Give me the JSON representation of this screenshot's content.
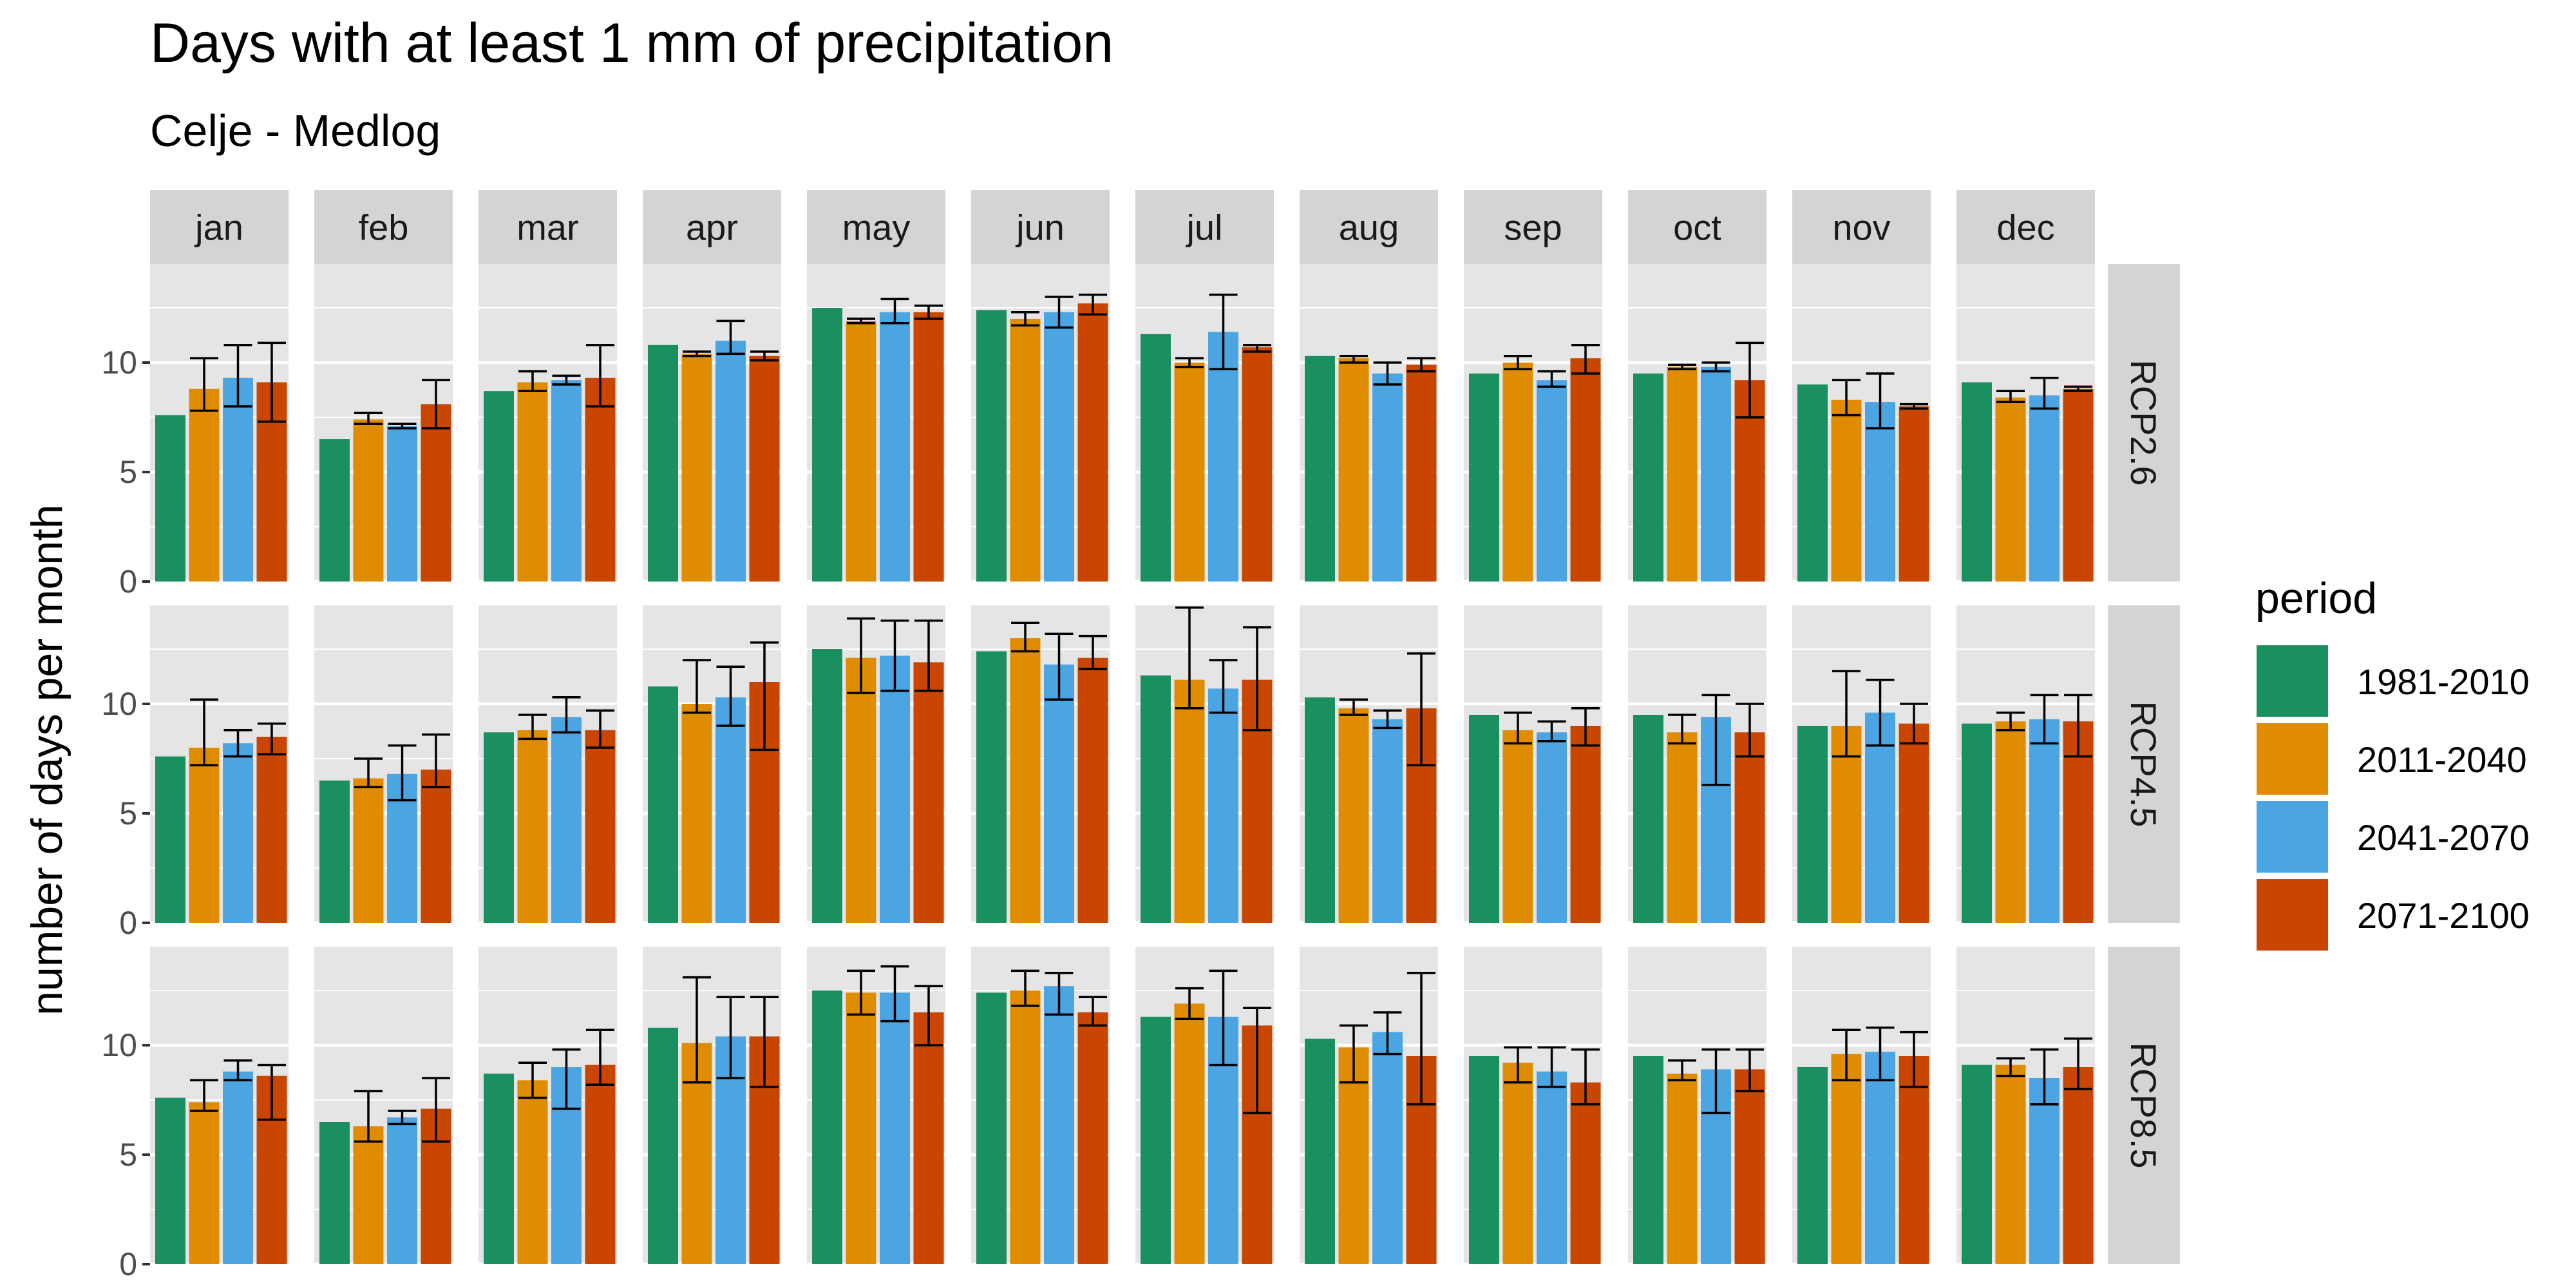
{
  "colors": {
    "panel_bg": "#e5e5e5",
    "strip_bg": "#d4d4d4",
    "grid": "#ffffff",
    "errorbar": "#000000",
    "series": [
      "#1a9060",
      "#e08c00",
      "#4ba5e3",
      "#c84600"
    ]
  },
  "chart_data": {
    "type": "bar",
    "title": "Days with at least 1 mm of precipitation",
    "subtitle": "Celje - Medlog",
    "xlabel": "",
    "ylabel": "number of days per month",
    "ylim": [
      0,
      14.5
    ],
    "yticks": [
      0,
      5,
      10
    ],
    "grid": true,
    "legend": {
      "title": "period",
      "position": "right"
    },
    "months": [
      "jan",
      "feb",
      "mar",
      "apr",
      "may",
      "jun",
      "jul",
      "aug",
      "sep",
      "oct",
      "nov",
      "dec"
    ],
    "scenarios": [
      "RCP2.6",
      "RCP4.5",
      "RCP8.5"
    ],
    "periods": [
      "1981-2010",
      "2011-2040",
      "2041-2070",
      "2071-2100"
    ],
    "series": [
      {
        "name": "1981-2010",
        "values": {
          "RCP2.6": [
            7.6,
            6.5,
            8.7,
            10.8,
            12.5,
            12.4,
            11.3,
            10.3,
            9.5,
            9.5,
            9.0,
            9.1
          ],
          "RCP4.5": [
            7.6,
            6.5,
            8.7,
            10.8,
            12.5,
            12.4,
            11.3,
            10.3,
            9.5,
            9.5,
            9.0,
            9.1
          ],
          "RCP8.5": [
            7.6,
            6.5,
            8.7,
            10.8,
            12.5,
            12.4,
            11.3,
            10.3,
            9.5,
            9.5,
            9.0,
            9.1
          ]
        },
        "errors": {
          "RCP2.6": [
            null,
            null,
            null,
            null,
            null,
            null,
            null,
            null,
            null,
            null,
            null,
            null
          ],
          "RCP4.5": [
            null,
            null,
            null,
            null,
            null,
            null,
            null,
            null,
            null,
            null,
            null,
            null
          ],
          "RCP8.5": [
            null,
            null,
            null,
            null,
            null,
            null,
            null,
            null,
            null,
            null,
            null,
            null
          ]
        }
      },
      {
        "name": "2011-2040",
        "values": {
          "RCP2.6": [
            8.8,
            7.4,
            9.1,
            10.4,
            11.9,
            12.0,
            10.0,
            10.2,
            10.0,
            9.8,
            8.3,
            8.4
          ],
          "RCP4.5": [
            8.0,
            6.6,
            8.8,
            10.0,
            12.1,
            13.0,
            11.1,
            9.8,
            8.8,
            8.7,
            9.0,
            9.2
          ],
          "RCP8.5": [
            7.4,
            6.3,
            8.4,
            10.1,
            12.4,
            12.5,
            11.9,
            9.9,
            9.2,
            8.7,
            9.6,
            9.1
          ]
        },
        "errors": {
          "RCP2.6": [
            [
              7.8,
              10.2
            ],
            [
              7.2,
              7.7
            ],
            [
              8.7,
              9.6
            ],
            [
              10.3,
              10.5
            ],
            [
              11.8,
              12.0
            ],
            [
              11.7,
              12.3
            ],
            [
              9.8,
              10.2
            ],
            [
              10.0,
              10.3
            ],
            [
              9.7,
              10.3
            ],
            [
              9.7,
              9.9
            ],
            [
              7.6,
              9.2
            ],
            [
              8.2,
              8.7
            ]
          ],
          "RCP4.5": [
            [
              7.2,
              10.2
            ],
            [
              6.2,
              7.5
            ],
            [
              8.4,
              9.5
            ],
            [
              9.6,
              12.0
            ],
            [
              10.5,
              13.9
            ],
            [
              12.4,
              13.7
            ],
            [
              9.8,
              14.4
            ],
            [
              9.5,
              10.2
            ],
            [
              8.2,
              9.6
            ],
            [
              8.2,
              9.5
            ],
            [
              7.6,
              11.5
            ],
            [
              8.8,
              9.6
            ]
          ],
          "RCP8.5": [
            [
              7.0,
              8.4
            ],
            [
              5.6,
              7.9
            ],
            [
              7.6,
              9.2
            ],
            [
              8.3,
              13.1
            ],
            [
              11.4,
              13.4
            ],
            [
              11.8,
              13.4
            ],
            [
              11.2,
              12.6
            ],
            [
              8.3,
              10.9
            ],
            [
              8.3,
              9.9
            ],
            [
              8.4,
              9.3
            ],
            [
              8.4,
              10.7
            ],
            [
              8.6,
              9.4
            ]
          ]
        }
      },
      {
        "name": "2041-2070",
        "values": {
          "RCP2.6": [
            9.3,
            7.1,
            9.2,
            11.0,
            12.3,
            12.3,
            11.4,
            9.5,
            9.2,
            9.8,
            8.2,
            8.5
          ],
          "RCP4.5": [
            8.2,
            6.8,
            9.4,
            10.3,
            12.2,
            11.8,
            10.7,
            9.3,
            8.7,
            9.4,
            9.6,
            9.3
          ],
          "RCP8.5": [
            8.8,
            6.7,
            9.0,
            10.4,
            12.4,
            12.7,
            11.3,
            10.6,
            8.8,
            8.9,
            9.7,
            8.5
          ]
        },
        "errors": {
          "RCP2.6": [
            [
              8.0,
              10.8
            ],
            [
              7.0,
              7.2
            ],
            [
              9.0,
              9.4
            ],
            [
              10.4,
              11.9
            ],
            [
              11.8,
              12.9
            ],
            [
              11.6,
              13.0
            ],
            [
              9.7,
              13.1
            ],
            [
              9.0,
              10.0
            ],
            [
              8.9,
              9.6
            ],
            [
              9.6,
              10.0
            ],
            [
              7.0,
              9.5
            ],
            [
              7.9,
              9.3
            ]
          ],
          "RCP4.5": [
            [
              7.6,
              8.8
            ],
            [
              5.6,
              8.1
            ],
            [
              8.7,
              10.3
            ],
            [
              9.0,
              11.7
            ],
            [
              10.6,
              13.8
            ],
            [
              10.2,
              13.2
            ],
            [
              9.6,
              12.0
            ],
            [
              8.9,
              9.7
            ],
            [
              8.3,
              9.2
            ],
            [
              6.3,
              10.4
            ],
            [
              8.1,
              11.1
            ],
            [
              8.2,
              10.4
            ]
          ],
          "RCP8.5": [
            [
              8.4,
              9.3
            ],
            [
              6.4,
              7.0
            ],
            [
              7.1,
              9.8
            ],
            [
              8.5,
              12.2
            ],
            [
              11.1,
              13.6
            ],
            [
              11.4,
              13.3
            ],
            [
              9.1,
              13.4
            ],
            [
              9.6,
              11.5
            ],
            [
              8.1,
              9.9
            ],
            [
              6.9,
              9.8
            ],
            [
              8.4,
              10.8
            ],
            [
              7.3,
              9.8
            ]
          ]
        }
      },
      {
        "name": "2071-2100",
        "values": {
          "RCP2.6": [
            9.1,
            8.1,
            9.3,
            10.3,
            12.3,
            12.7,
            10.7,
            9.9,
            10.2,
            9.2,
            8.0,
            8.8
          ],
          "RCP4.5": [
            8.5,
            7.0,
            8.8,
            11.0,
            11.9,
            12.1,
            11.1,
            9.8,
            9.0,
            8.7,
            9.1,
            9.2
          ],
          "RCP8.5": [
            8.6,
            7.1,
            9.1,
            10.4,
            11.5,
            11.5,
            10.9,
            9.5,
            8.3,
            8.9,
            9.5,
            9.0
          ]
        },
        "errors": {
          "RCP2.6": [
            [
              7.3,
              10.9
            ],
            [
              7.0,
              9.2
            ],
            [
              8.0,
              10.8
            ],
            [
              10.1,
              10.5
            ],
            [
              12.0,
              12.6
            ],
            [
              12.2,
              13.1
            ],
            [
              10.5,
              10.8
            ],
            [
              9.6,
              10.2
            ],
            [
              9.5,
              10.8
            ],
            [
              7.5,
              10.9
            ],
            [
              7.9,
              8.1
            ],
            [
              8.7,
              8.9
            ]
          ],
          "RCP4.5": [
            [
              7.7,
              9.1
            ],
            [
              6.2,
              8.6
            ],
            [
              8.0,
              9.7
            ],
            [
              7.9,
              12.8
            ],
            [
              10.6,
              13.8
            ],
            [
              11.6,
              13.1
            ],
            [
              8.8,
              13.5
            ],
            [
              7.2,
              12.3
            ],
            [
              8.1,
              9.8
            ],
            [
              7.6,
              10.0
            ],
            [
              8.2,
              10.0
            ],
            [
              7.6,
              10.4
            ]
          ],
          "RCP8.5": [
            [
              6.6,
              9.1
            ],
            [
              5.6,
              8.5
            ],
            [
              8.2,
              10.7
            ],
            [
              8.1,
              12.2
            ],
            [
              10.0,
              12.7
            ],
            [
              10.9,
              12.2
            ],
            [
              6.9,
              11.7
            ],
            [
              7.3,
              13.3
            ],
            [
              7.3,
              9.8
            ],
            [
              7.9,
              9.8
            ],
            [
              8.1,
              10.6
            ],
            [
              8.0,
              10.3
            ]
          ]
        }
      }
    ]
  }
}
